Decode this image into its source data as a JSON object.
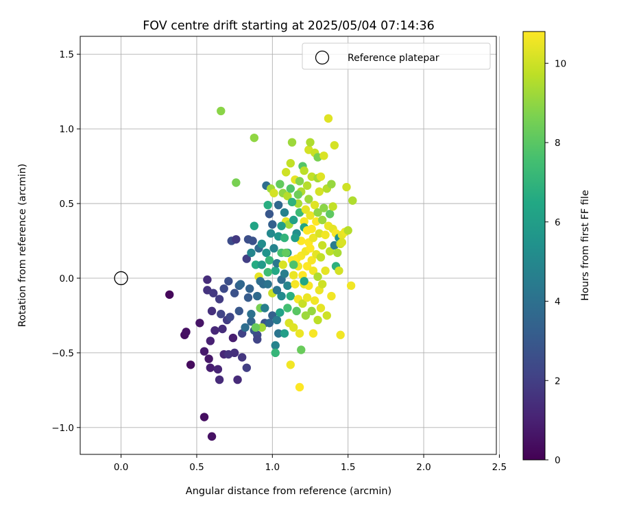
{
  "chart_data": {
    "type": "scatter",
    "title": "FOV centre drift starting at 2025/05/04 07:14:36",
    "xlabel": "Angular distance from reference (arcmin)",
    "ylabel": "Rotation from reference (arcmin)",
    "xlim": [
      -0.27,
      2.48
    ],
    "ylim": [
      -1.18,
      1.62
    ],
    "xticks": [
      0.0,
      0.5,
      1.0,
      1.5,
      2.0,
      2.5
    ],
    "xtick_labels": [
      "0.0",
      "0.5",
      "1.0",
      "1.5",
      "2.0",
      "2.5"
    ],
    "yticks": [
      -1.0,
      -0.5,
      0.0,
      0.5,
      1.0,
      1.5
    ],
    "ytick_labels": [
      "−1.0",
      "−0.5",
      "0.0",
      "0.5",
      "1.0",
      "1.5"
    ],
    "grid": true,
    "legend": {
      "position": "top-right",
      "entries": [
        "Reference platepar"
      ]
    },
    "reference_point": {
      "label": "Reference platepar",
      "x": 0.0,
      "y": 0.0,
      "marker": "open-circle"
    },
    "colorbar": {
      "label": "Hours from first FF file",
      "colormap": "viridis",
      "range": [
        0,
        10.8
      ],
      "ticks": [
        0,
        2,
        4,
        6,
        8,
        10
      ],
      "tick_labels": [
        "0",
        "2",
        "4",
        "6",
        "8",
        "10"
      ]
    },
    "series": [
      {
        "color_by": "hours",
        "points": [
          [
            0.32,
            -0.11,
            0.2
          ],
          [
            0.42,
            -0.38,
            0.4
          ],
          [
            0.43,
            -0.36,
            0.5
          ],
          [
            0.46,
            -0.58,
            0.3
          ],
          [
            0.52,
            -0.3,
            0.6
          ],
          [
            0.55,
            -0.93,
            0.4
          ],
          [
            0.55,
            -0.49,
            0.8
          ],
          [
            0.57,
            -0.01,
            1.4
          ],
          [
            0.57,
            -0.08,
            1.6
          ],
          [
            0.58,
            -0.54,
            0.7
          ],
          [
            0.59,
            -0.6,
            0.9
          ],
          [
            0.59,
            -0.42,
            1.0
          ],
          [
            0.6,
            -1.06,
            0.5
          ],
          [
            0.6,
            -0.22,
            1.5
          ],
          [
            0.61,
            -0.1,
            1.8
          ],
          [
            0.62,
            -0.35,
            1.2
          ],
          [
            0.64,
            -0.61,
            1.1
          ],
          [
            0.65,
            -0.68,
            1.3
          ],
          [
            0.65,
            -0.14,
            1.9
          ],
          [
            0.66,
            -0.24,
            2.2
          ],
          [
            0.67,
            -0.34,
            1.4
          ],
          [
            0.68,
            -0.51,
            1.2
          ],
          [
            0.68,
            -0.07,
            2.4
          ],
          [
            0.7,
            -0.28,
            1.9
          ],
          [
            0.71,
            -0.51,
            1.6
          ],
          [
            0.71,
            -0.02,
            2.6
          ],
          [
            0.72,
            -0.26,
            2.3
          ],
          [
            0.73,
            0.25,
            2.5
          ],
          [
            0.74,
            -0.4,
            0.9
          ],
          [
            0.75,
            -0.1,
            2.7
          ],
          [
            0.75,
            -0.5,
            1.5
          ],
          [
            0.76,
            0.26,
            1.8
          ],
          [
            0.77,
            -0.68,
            1.3
          ],
          [
            0.78,
            -0.22,
            2.9
          ],
          [
            0.78,
            -0.05,
            3.3
          ],
          [
            0.79,
            -0.04,
            3.6
          ],
          [
            0.8,
            -0.37,
            2.1
          ],
          [
            0.8,
            -0.53,
            1.7
          ],
          [
            0.82,
            -0.33,
            3.9
          ],
          [
            0.83,
            -0.6,
            2.0
          ],
          [
            0.83,
            0.13,
            2.0
          ],
          [
            0.84,
            -0.13,
            3.1
          ],
          [
            0.84,
            0.26,
            2.6
          ],
          [
            0.85,
            -0.07,
            3.4
          ],
          [
            0.86,
            0.17,
            4.9
          ],
          [
            0.86,
            -0.29,
            3.5
          ],
          [
            0.87,
            0.25,
            2.7
          ],
          [
            0.88,
            0.35,
            6.3
          ],
          [
            0.88,
            -0.35,
            3.0
          ],
          [
            0.89,
            0.09,
            6.6
          ],
          [
            0.9,
            -0.38,
            2.5
          ],
          [
            0.9,
            -0.12,
            3.7
          ],
          [
            0.9,
            -0.41,
            2.2
          ],
          [
            0.91,
            0.2,
            3.7
          ],
          [
            0.91,
            0.01,
            10.4
          ],
          [
            0.92,
            -0.02,
            3.9
          ],
          [
            0.92,
            -0.2,
            8.6
          ],
          [
            0.93,
            0.23,
            5.2
          ],
          [
            0.93,
            0.09,
            5.8
          ],
          [
            0.94,
            -0.04,
            3.8
          ],
          [
            0.95,
            -0.2,
            4.6
          ],
          [
            0.95,
            -0.3,
            2.8
          ],
          [
            0.96,
            0.62,
            3.9
          ],
          [
            0.96,
            0.17,
            5.5
          ],
          [
            0.97,
            -0.04,
            4.1
          ],
          [
            0.97,
            0.49,
            6.7
          ],
          [
            0.98,
            0.43,
            2.9
          ],
          [
            0.98,
            0.12,
            7.1
          ],
          [
            0.98,
            -0.3,
            3.6
          ],
          [
            0.99,
            0.6,
            9.3
          ],
          [
            0.99,
            0.3,
            5.0
          ],
          [
            1.0,
            0.36,
            3.3
          ],
          [
            1.0,
            -0.1,
            9.9
          ],
          [
            1.0,
            -0.25,
            3.3
          ],
          [
            1.01,
            0.2,
            4.8
          ],
          [
            1.01,
            0.57,
            10.1
          ],
          [
            1.02,
            -0.45,
            4.8
          ],
          [
            1.02,
            -0.5,
            7.1
          ],
          [
            1.02,
            0.05,
            6.5
          ],
          [
            1.03,
            -0.28,
            4.4
          ],
          [
            1.03,
            0.1,
            4.3
          ],
          [
            1.04,
            0.28,
            5.6
          ],
          [
            1.04,
            -0.37,
            4.2
          ],
          [
            1.04,
            0.49,
            3.6
          ],
          [
            1.05,
            0.63,
            8.2
          ],
          [
            1.05,
            -0.23,
            6.2
          ],
          [
            1.06,
            -0.01,
            3.9
          ],
          [
            1.06,
            0.17,
            7.6
          ],
          [
            1.06,
            -0.12,
            5.1
          ],
          [
            1.07,
            0.57,
            9.0
          ],
          [
            1.07,
            0.09,
            10.2
          ],
          [
            1.08,
            0.44,
            4.7
          ],
          [
            1.08,
            0.27,
            7.0
          ],
          [
            1.08,
            -0.37,
            6.0
          ],
          [
            1.08,
            0.03,
            4.6
          ],
          [
            1.09,
            0.71,
            10.0
          ],
          [
            1.09,
            0.38,
            10.4
          ],
          [
            1.1,
            0.17,
            5.5
          ],
          [
            1.1,
            -0.2,
            7.5
          ],
          [
            1.1,
            0.55,
            9.6
          ],
          [
            1.1,
            -0.05,
            4.9
          ],
          [
            1.11,
            0.36,
            9.3
          ],
          [
            1.11,
            -0.3,
            10.2
          ],
          [
            1.12,
            0.77,
            9.8
          ],
          [
            1.12,
            -0.58,
            10.6
          ],
          [
            1.12,
            0.6,
            7.8
          ],
          [
            1.12,
            -0.12,
            6.8
          ],
          [
            1.13,
            0.91,
            9.2
          ],
          [
            1.13,
            0.12,
            10.8
          ],
          [
            1.14,
            0.39,
            6.1
          ],
          [
            1.14,
            0.02,
            10.5
          ],
          [
            1.14,
            -0.33,
            10.3
          ],
          [
            1.15,
            0.66,
            10.4
          ],
          [
            1.15,
            -0.04,
            10.7
          ],
          [
            1.16,
            0.3,
            5.3
          ],
          [
            1.16,
            0.13,
            10.8
          ],
          [
            1.16,
            -0.22,
            8.0
          ],
          [
            1.17,
            0.5,
            9.4
          ],
          [
            1.17,
            0.08,
            10.6
          ],
          [
            1.17,
            -0.14,
            10.7
          ],
          [
            1.18,
            -0.73,
            10.8
          ],
          [
            1.18,
            0.65,
            8.8
          ],
          [
            1.18,
            0.44,
            7.3
          ],
          [
            1.18,
            -0.37,
            10.5
          ],
          [
            1.19,
            0.25,
            10.9
          ],
          [
            1.19,
            0.15,
            10.7
          ],
          [
            1.19,
            0.58,
            9.5
          ],
          [
            1.19,
            -0.48,
            8.3
          ],
          [
            1.2,
            0.75,
            7.9
          ],
          [
            1.2,
            0.02,
            10.8
          ],
          [
            1.2,
            -0.17,
            9.9
          ],
          [
            1.21,
            0.38,
            10.7
          ],
          [
            1.21,
            0.34,
            6.3
          ],
          [
            1.21,
            0.72,
            9.7
          ],
          [
            1.21,
            -0.04,
            10.4
          ],
          [
            1.22,
            0.18,
            10.6
          ],
          [
            1.22,
            -0.25,
            9.2
          ],
          [
            1.22,
            0.46,
            10.4
          ],
          [
            1.23,
            0.62,
            9.6
          ],
          [
            1.23,
            0.32,
            10.8
          ],
          [
            1.23,
            0.08,
            10.9
          ],
          [
            1.23,
            -0.13,
            10.5
          ],
          [
            1.24,
            0.86,
            10.1
          ],
          [
            1.24,
            0.53,
            9.2
          ],
          [
            1.24,
            0.24,
            10.8
          ],
          [
            1.24,
            -0.05,
            10.7
          ],
          [
            1.25,
            0.42,
            10.5
          ],
          [
            1.25,
            0.91,
            9.5
          ],
          [
            1.25,
            0.2,
            10.9
          ],
          [
            1.26,
            0.68,
            9.8
          ],
          [
            1.26,
            -0.22,
            9.1
          ],
          [
            1.26,
            0.33,
            10.8
          ],
          [
            1.26,
            0.12,
            10.7
          ],
          [
            1.27,
            0.05,
            10.6
          ],
          [
            1.27,
            -0.37,
            10.7
          ],
          [
            1.27,
            0.27,
            10.5
          ],
          [
            1.28,
            0.84,
            9.9
          ],
          [
            1.28,
            0.49,
            10.3
          ],
          [
            1.28,
            -0.15,
            10.6
          ],
          [
            1.29,
            0.38,
            10.8
          ],
          [
            1.29,
            0.16,
            10.4
          ],
          [
            1.3,
            -0.28,
            9.7
          ],
          [
            1.3,
            0.81,
            8.6
          ],
          [
            1.3,
            0.67,
            9.3
          ],
          [
            1.3,
            0.44,
            9.0
          ],
          [
            1.3,
            0.01,
            9.5
          ],
          [
            1.31,
            0.3,
            10.2
          ],
          [
            1.31,
            -0.08,
            10.5
          ],
          [
            1.31,
            0.58,
            10.1
          ],
          [
            1.32,
            0.68,
            10.3
          ],
          [
            1.32,
            0.14,
            9.8
          ],
          [
            1.32,
            -0.2,
            10.4
          ],
          [
            1.33,
            0.39,
            9.2
          ],
          [
            1.33,
            0.22,
            9.9
          ],
          [
            1.33,
            -0.04,
            10.0
          ],
          [
            1.34,
            0.47,
            8.9
          ],
          [
            1.34,
            0.82,
            10.2
          ],
          [
            1.35,
            0.29,
            10.6
          ],
          [
            1.35,
            0.05,
            10.4
          ],
          [
            1.36,
            0.6,
            9.6
          ],
          [
            1.36,
            -0.25,
            10.0
          ],
          [
            1.37,
            1.07,
            10.3
          ],
          [
            1.37,
            0.35,
            10.5
          ],
          [
            1.38,
            0.18,
            9.7
          ],
          [
            1.38,
            0.43,
            8.1
          ],
          [
            1.39,
            0.63,
            9.1
          ],
          [
            1.39,
            -0.12,
            10.6
          ],
          [
            1.4,
            0.48,
            9.8
          ],
          [
            1.4,
            0.33,
            10.4
          ],
          [
            1.41,
            0.89,
            10.1
          ],
          [
            1.41,
            0.22,
            4.5
          ],
          [
            1.42,
            0.08,
            6.8
          ],
          [
            1.42,
            0.3,
            10.7
          ],
          [
            1.43,
            0.17,
            9.4
          ],
          [
            1.44,
            0.27,
            5.4
          ],
          [
            1.44,
            0.05,
            10.1
          ],
          [
            1.45,
            -0.38,
            10.6
          ],
          [
            1.45,
            0.23,
            10.0
          ],
          [
            1.46,
            0.29,
            10.4
          ],
          [
            1.46,
            0.24,
            10.2
          ],
          [
            1.48,
            0.31,
            10.5
          ],
          [
            1.49,
            0.61,
            10.0
          ],
          [
            1.5,
            0.32,
            9.6
          ],
          [
            1.52,
            -0.05,
            10.6
          ],
          [
            1.53,
            0.52,
            9.5
          ],
          [
            0.66,
            1.12,
            8.9
          ],
          [
            0.76,
            0.64,
            8.6
          ],
          [
            0.88,
            0.94,
            9.0
          ],
          [
            1.17,
            0.56,
            8.4
          ],
          [
            1.09,
            0.17,
            8.2
          ],
          [
            1.13,
            0.51,
            6.9
          ],
          [
            0.93,
            -0.33,
            9.3
          ],
          [
            0.89,
            -0.33,
            8.3
          ],
          [
            1.03,
            -0.08,
            4.2
          ],
          [
            0.86,
            -0.24,
            4.0
          ],
          [
            1.15,
            0.27,
            5.9
          ],
          [
            1.21,
            -0.02,
            6.4
          ],
          [
            0.97,
            0.04,
            7.4
          ],
          [
            1.06,
            0.35,
            6.0
          ],
          [
            1.14,
            0.09,
            7.7
          ]
        ]
      }
    ]
  }
}
